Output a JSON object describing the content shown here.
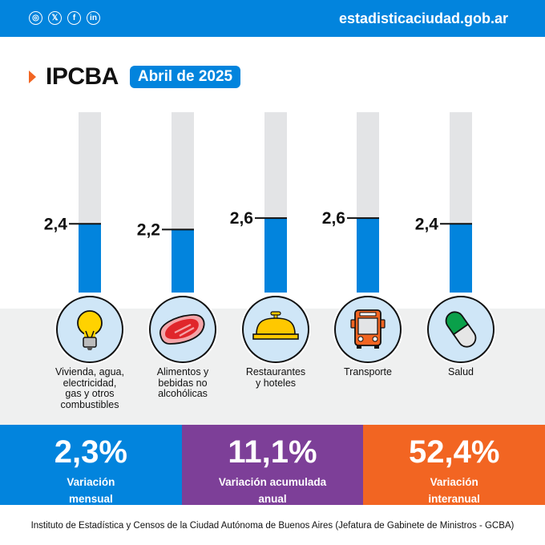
{
  "header": {
    "social_icons": [
      "instagram-icon",
      "x-twitter-icon",
      "facebook-icon",
      "linkedin-icon"
    ],
    "social_glyphs": [
      "◎",
      "𝕏",
      "f",
      "in"
    ],
    "site": "estadisticaciudad.gob.ar",
    "color": "#0284dd"
  },
  "title": {
    "main": "IPCBA",
    "period": "Abril de 2025",
    "accent": "#f26522"
  },
  "chart_data": {
    "type": "bar",
    "title": "IPCBA",
    "subtitle": "Abril de 2025",
    "categories": [
      "Vivienda, agua, electricidad, gas y otros combustibles",
      "Alimentos y bebidas no alcohólicas",
      "Restaurantes y hoteles",
      "Transporte",
      "Salud"
    ],
    "values": [
      2.4,
      2.2,
      2.6,
      2.6,
      2.4
    ],
    "value_labels": [
      "2,4",
      "2,2",
      "2,6",
      "2,6",
      "2,4"
    ],
    "icons": [
      "lightbulb-icon",
      "steak-icon",
      "service-bell-icon",
      "bus-icon",
      "pill-icon"
    ],
    "ylim": [
      0,
      6.3
    ],
    "fill_color": "#0284dd",
    "track_color": "#e3e4e6",
    "label_lines": [
      [
        "Vivienda, agua,",
        "electricidad,",
        "gas y otros",
        "combustibles"
      ],
      [
        "Alimentos y",
        "bebidas no",
        "alcohólicas"
      ],
      [
        "Restaurantes",
        "y hoteles"
      ],
      [
        "Transporte"
      ],
      [
        "Salud"
      ]
    ]
  },
  "stats": [
    {
      "value": "2,3%",
      "caption_lines": [
        "Variación",
        "mensual"
      ],
      "color": "#0284dd"
    },
    {
      "value": "11,1%",
      "caption_lines": [
        "Variación acumulada",
        "anual"
      ],
      "color": "#7d3f98"
    },
    {
      "value": "52,4%",
      "caption_lines": [
        "Variación",
        "interanual"
      ],
      "color": "#f26522"
    }
  ],
  "footer": "Instituto de Estadística y Censos de la Ciudad Autónoma de Buenos Aires (Jefatura de Gabinete de Ministros - GCBA)"
}
